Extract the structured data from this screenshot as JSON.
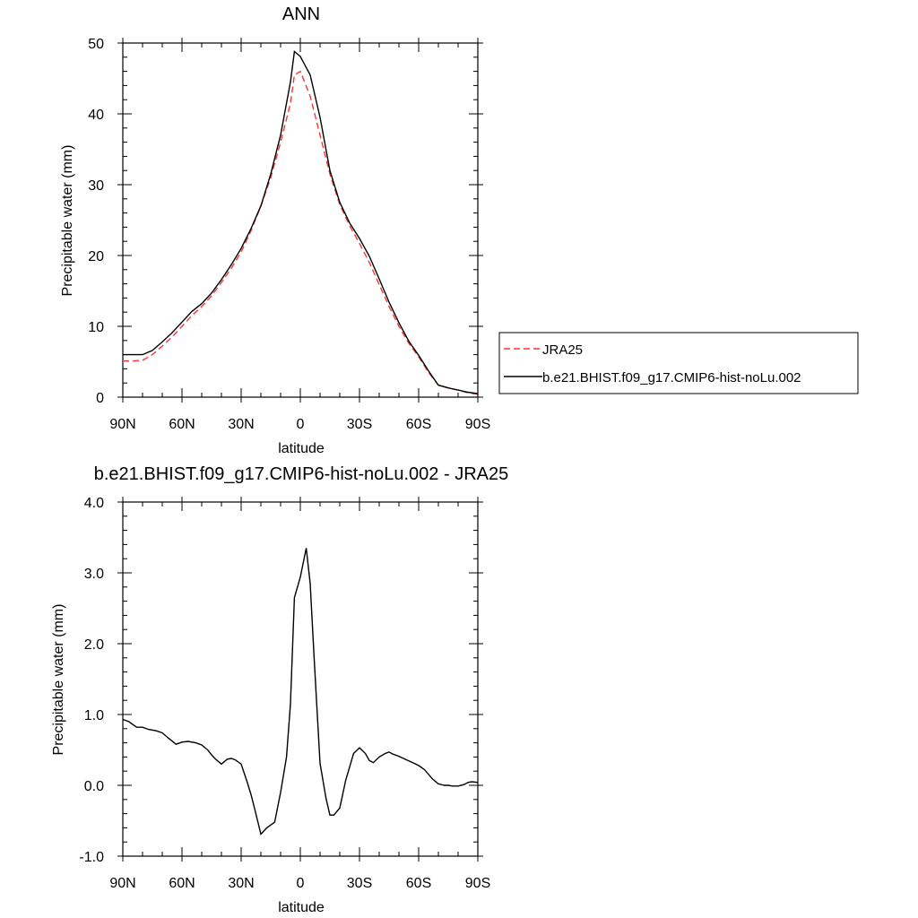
{
  "chart_data": [
    {
      "type": "line",
      "title": "ANN",
      "xlabel": "latitude",
      "ylabel": "Precipitable water (mm)",
      "xlim": [
        90,
        -90
      ],
      "ylim": [
        0,
        50
      ],
      "x_tick_values": [
        90,
        60,
        30,
        0,
        -30,
        -60,
        -90
      ],
      "x_tick_labels": [
        "90N",
        "60N",
        "30N",
        "0",
        "30S",
        "60S",
        "90S"
      ],
      "y_tick_values": [
        0,
        10,
        20,
        30,
        40,
        50
      ],
      "y_tick_labels": [
        "0",
        "10",
        "20",
        "30",
        "40",
        "50"
      ],
      "grid": false,
      "legend_position": "right",
      "series": [
        {
          "name": "JRA25",
          "style": "dashed",
          "color": "#ff3333",
          "x": [
            90,
            85,
            80,
            75,
            70,
            65,
            60,
            55,
            50,
            45,
            40,
            35,
            30,
            25,
            20,
            15,
            10,
            5,
            3,
            0,
            -5,
            -10,
            -15,
            -20,
            -25,
            -30,
            -35,
            -40,
            -45,
            -50,
            -55,
            -60,
            -65,
            -70,
            -75,
            -80,
            -85,
            -90
          ],
          "y": [
            5.1,
            5.1,
            5.2,
            6.0,
            7.2,
            8.5,
            10.0,
            11.5,
            12.8,
            14.3,
            16.2,
            18.2,
            20.5,
            23.5,
            27.0,
            31.0,
            36.0,
            41.5,
            45.5,
            46.0,
            42.5,
            37.0,
            31.5,
            27.2,
            24.2,
            21.7,
            19.0,
            15.9,
            12.8,
            10.0,
            7.6,
            5.7,
            3.5,
            1.7,
            1.3,
            1.0,
            0.6,
            0.4
          ]
        },
        {
          "name": "b.e21.BHIST.f09_g17.CMIP6-hist-noLu.002",
          "style": "solid",
          "color": "#000000",
          "x": [
            90,
            85,
            80,
            75,
            70,
            65,
            60,
            55,
            50,
            45,
            40,
            35,
            30,
            25,
            20,
            15,
            10,
            5,
            3,
            0,
            -5,
            -10,
            -15,
            -20,
            -25,
            -30,
            -35,
            -40,
            -45,
            -50,
            -55,
            -60,
            -65,
            -70,
            -75,
            -80,
            -85,
            -90
          ],
          "y": [
            6.0,
            6.0,
            6.0,
            6.6,
            7.8,
            9.1,
            10.6,
            12.1,
            13.2,
            14.7,
            16.6,
            18.7,
            21.0,
            23.8,
            27.0,
            31.5,
            37.0,
            44.5,
            48.8,
            48.1,
            45.5,
            39.5,
            32.0,
            27.5,
            24.6,
            22.4,
            19.9,
            16.7,
            13.4,
            10.5,
            7.9,
            5.9,
            3.7,
            1.7,
            1.3,
            1.0,
            0.7,
            0.5
          ]
        }
      ]
    },
    {
      "type": "line",
      "title": "b.e21.BHIST.f09_g17.CMIP6-hist-noLu.002 - JRA25",
      "xlabel": "latitude",
      "ylabel": "Precipitable water (mm)",
      "xlim": [
        90,
        -90
      ],
      "ylim": [
        -1.0,
        4.0
      ],
      "x_tick_values": [
        90,
        60,
        30,
        0,
        -30,
        -60,
        -90
      ],
      "x_tick_labels": [
        "90N",
        "60N",
        "30N",
        "0",
        "30S",
        "60S",
        "90S"
      ],
      "y_tick_values": [
        -1.0,
        0.0,
        1.0,
        2.0,
        3.0,
        4.0
      ],
      "y_tick_labels": [
        "-1.0",
        "0.0",
        "1.0",
        "2.0",
        "3.0",
        "4.0"
      ],
      "grid": false,
      "series": [
        {
          "style": "solid",
          "color": "#000000",
          "x": [
            90,
            87,
            83,
            80,
            77,
            73,
            70,
            67,
            63,
            60,
            57,
            53,
            50,
            47,
            45,
            43,
            40,
            37,
            35,
            33,
            30,
            27,
            25,
            23,
            20,
            17,
            13,
            10,
            7,
            5,
            3,
            0,
            -3,
            -5,
            -7,
            -10,
            -13,
            -15,
            -17,
            -20,
            -23,
            -27,
            -30,
            -33,
            -35,
            -37,
            -40,
            -43,
            -45,
            -47,
            -50,
            -53,
            -57,
            -60,
            -63,
            -67,
            -70,
            -73,
            -75,
            -77,
            -80,
            -83,
            -85,
            -87,
            -90
          ],
          "y": [
            0.93,
            0.9,
            0.82,
            0.82,
            0.79,
            0.77,
            0.74,
            0.67,
            0.58,
            0.61,
            0.62,
            0.6,
            0.57,
            0.5,
            0.43,
            0.37,
            0.3,
            0.37,
            0.38,
            0.36,
            0.3,
            0.05,
            -0.13,
            -0.35,
            -0.69,
            -0.6,
            -0.52,
            -0.1,
            0.4,
            1.15,
            2.65,
            2.94,
            3.35,
            2.85,
            1.8,
            0.31,
            -0.18,
            -0.42,
            -0.42,
            -0.32,
            0.07,
            0.45,
            0.53,
            0.45,
            0.35,
            0.32,
            0.4,
            0.45,
            0.47,
            0.44,
            0.41,
            0.37,
            0.32,
            0.28,
            0.22,
            0.09,
            0.02,
            0.0,
            0.0,
            -0.01,
            -0.01,
            0.01,
            0.04,
            0.05,
            0.04
          ]
        }
      ]
    }
  ]
}
